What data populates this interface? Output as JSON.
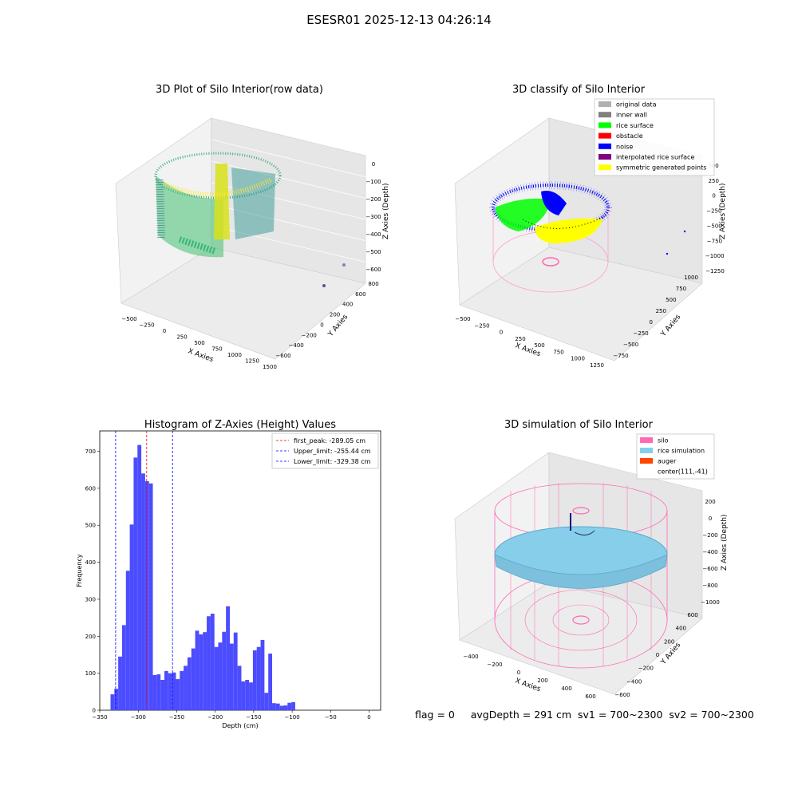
{
  "suptitle": "ESESR01 2025-12-13 04:26:14",
  "colors": {
    "histogram_bar": "#4c4cff",
    "peak_line": "#ff0000",
    "limit_line": "#0000ff",
    "original": "#b0b0b0",
    "inner_wall": "#808080",
    "rice_surface": "#00ff00",
    "obstacle": "#ff0000",
    "noise": "#0000ff",
    "interpolated": "#800080",
    "symmetric": "#ffff00",
    "silo": "#ff69b4",
    "rice_sim": "#87ceeb",
    "auger": "#ff4500"
  },
  "chart_data": [
    {
      "type": "scatter3d",
      "title": "3D Plot of Silo Interior(row data)",
      "xlabel": "X Axies",
      "ylabel": "Y Axies",
      "zlabel": "Z Axies (Depth)",
      "x_ticks": [
        "−500",
        "−250",
        "0",
        "250",
        "500",
        "750",
        "1000",
        "1250",
        "1500"
      ],
      "y_ticks": [
        "−600",
        "−400",
        "−200",
        "0",
        "200",
        "400",
        "600",
        "800"
      ],
      "z_ticks": [
        "0",
        "−100",
        "−200",
        "−300",
        "−400",
        "−500",
        "−600"
      ]
    },
    {
      "type": "scatter3d",
      "title": "3D classify of Silo Interior",
      "xlabel": "X Axies",
      "ylabel": "Y Axies",
      "zlabel": "Z Axies (Depth)",
      "x_ticks": [
        "−500",
        "−250",
        "0",
        "250",
        "500",
        "750",
        "1000",
        "1250"
      ],
      "y_ticks": [
        "−750",
        "−500",
        "−250",
        "0",
        "250",
        "500",
        "750",
        "1000"
      ],
      "z_ticks": [
        "500",
        "250",
        "0",
        "−250",
        "−500",
        "−750",
        "−1000",
        "−1250"
      ],
      "legend": [
        "original data",
        "inner wall",
        "rice surface",
        "obstacle",
        "noise",
        "interpolated rice surface",
        "symmetric generated points"
      ],
      "legend_position": "top-right"
    },
    {
      "type": "bar",
      "title": "Histogram of Z-Axies (Height) Values",
      "xlabel": "Depth (cm)",
      "ylabel": "Frequency",
      "xlim": [
        -350,
        15
      ],
      "ylim": [
        0,
        755
      ],
      "x_ticks": [
        -350,
        -300,
        -250,
        -200,
        -150,
        -100,
        -50,
        0
      ],
      "x_tick_labels": [
        "−350",
        "−300",
        "−250",
        "−200",
        "−150",
        "−100",
        "−50",
        "0"
      ],
      "y_ticks": [
        0,
        100,
        200,
        300,
        400,
        500,
        600,
        700
      ],
      "bin_width": 5,
      "bins": [
        {
          "x0": -336,
          "value": 43
        },
        {
          "x0": -331,
          "value": 58
        },
        {
          "x0": -326,
          "value": 145
        },
        {
          "x0": -321,
          "value": 230
        },
        {
          "x0": -316,
          "value": 377
        },
        {
          "x0": -311,
          "value": 502
        },
        {
          "x0": -306,
          "value": 683
        },
        {
          "x0": -301,
          "value": 717
        },
        {
          "x0": -296,
          "value": 640
        },
        {
          "x0": -291,
          "value": 619
        },
        {
          "x0": -286,
          "value": 613
        },
        {
          "x0": -281,
          "value": 95
        },
        {
          "x0": -276,
          "value": 97
        },
        {
          "x0": -271,
          "value": 82
        },
        {
          "x0": -266,
          "value": 106
        },
        {
          "x0": -261,
          "value": 100
        },
        {
          "x0": -256,
          "value": 102
        },
        {
          "x0": -251,
          "value": 84
        },
        {
          "x0": -246,
          "value": 106
        },
        {
          "x0": -241,
          "value": 120
        },
        {
          "x0": -236,
          "value": 143
        },
        {
          "x0": -231,
          "value": 167
        },
        {
          "x0": -226,
          "value": 215
        },
        {
          "x0": -221,
          "value": 205
        },
        {
          "x0": -216,
          "value": 211
        },
        {
          "x0": -211,
          "value": 254
        },
        {
          "x0": -206,
          "value": 261
        },
        {
          "x0": -201,
          "value": 171
        },
        {
          "x0": -196,
          "value": 183
        },
        {
          "x0": -191,
          "value": 212
        },
        {
          "x0": -186,
          "value": 281
        },
        {
          "x0": -181,
          "value": 180
        },
        {
          "x0": -176,
          "value": 210
        },
        {
          "x0": -171,
          "value": 120
        },
        {
          "x0": -166,
          "value": 78
        },
        {
          "x0": -161,
          "value": 82
        },
        {
          "x0": -156,
          "value": 75
        },
        {
          "x0": -151,
          "value": 162
        },
        {
          "x0": -146,
          "value": 171
        },
        {
          "x0": -141,
          "value": 190
        },
        {
          "x0": -136,
          "value": 47
        },
        {
          "x0": -131,
          "value": 153
        },
        {
          "x0": -126,
          "value": 19
        },
        {
          "x0": -121,
          "value": 18
        },
        {
          "x0": -116,
          "value": 12
        },
        {
          "x0": -111,
          "value": 13
        },
        {
          "x0": -106,
          "value": 20
        },
        {
          "x0": -101,
          "value": 22
        }
      ],
      "vlines": [
        {
          "x": -289.05,
          "label": "first_peak: -289.05 cm",
          "color": "#ff0000"
        },
        {
          "x": -255.44,
          "label": "Upper_limit: -255.44 cm",
          "color": "#0000ff"
        },
        {
          "x": -329.38,
          "label": "Lower_limit: -329.38 cm",
          "color": "#0000ff"
        }
      ],
      "legend_position": "top-right"
    },
    {
      "type": "surface3d",
      "title": "3D simulation of Silo Interior",
      "xlabel": "X Axies",
      "ylabel": "Y Axies",
      "zlabel": "Z Axies (Depth)",
      "x_ticks": [
        "−400",
        "−200",
        "0",
        "200",
        "400",
        "600"
      ],
      "y_ticks": [
        "−600",
        "−400",
        "−200",
        "0",
        "200",
        "400",
        "600"
      ],
      "z_ticks": [
        "200",
        "0",
        "−200",
        "−400",
        "−600",
        "−800",
        "−1000"
      ],
      "legend": [
        "silo",
        "rice simulation",
        "auger",
        "center(111,-41)"
      ],
      "legend_position": "top-right"
    }
  ],
  "footer": "flag = 0     avgDepth = 291 cm  sv1 = 700~2300  sv2 = 700~2300"
}
